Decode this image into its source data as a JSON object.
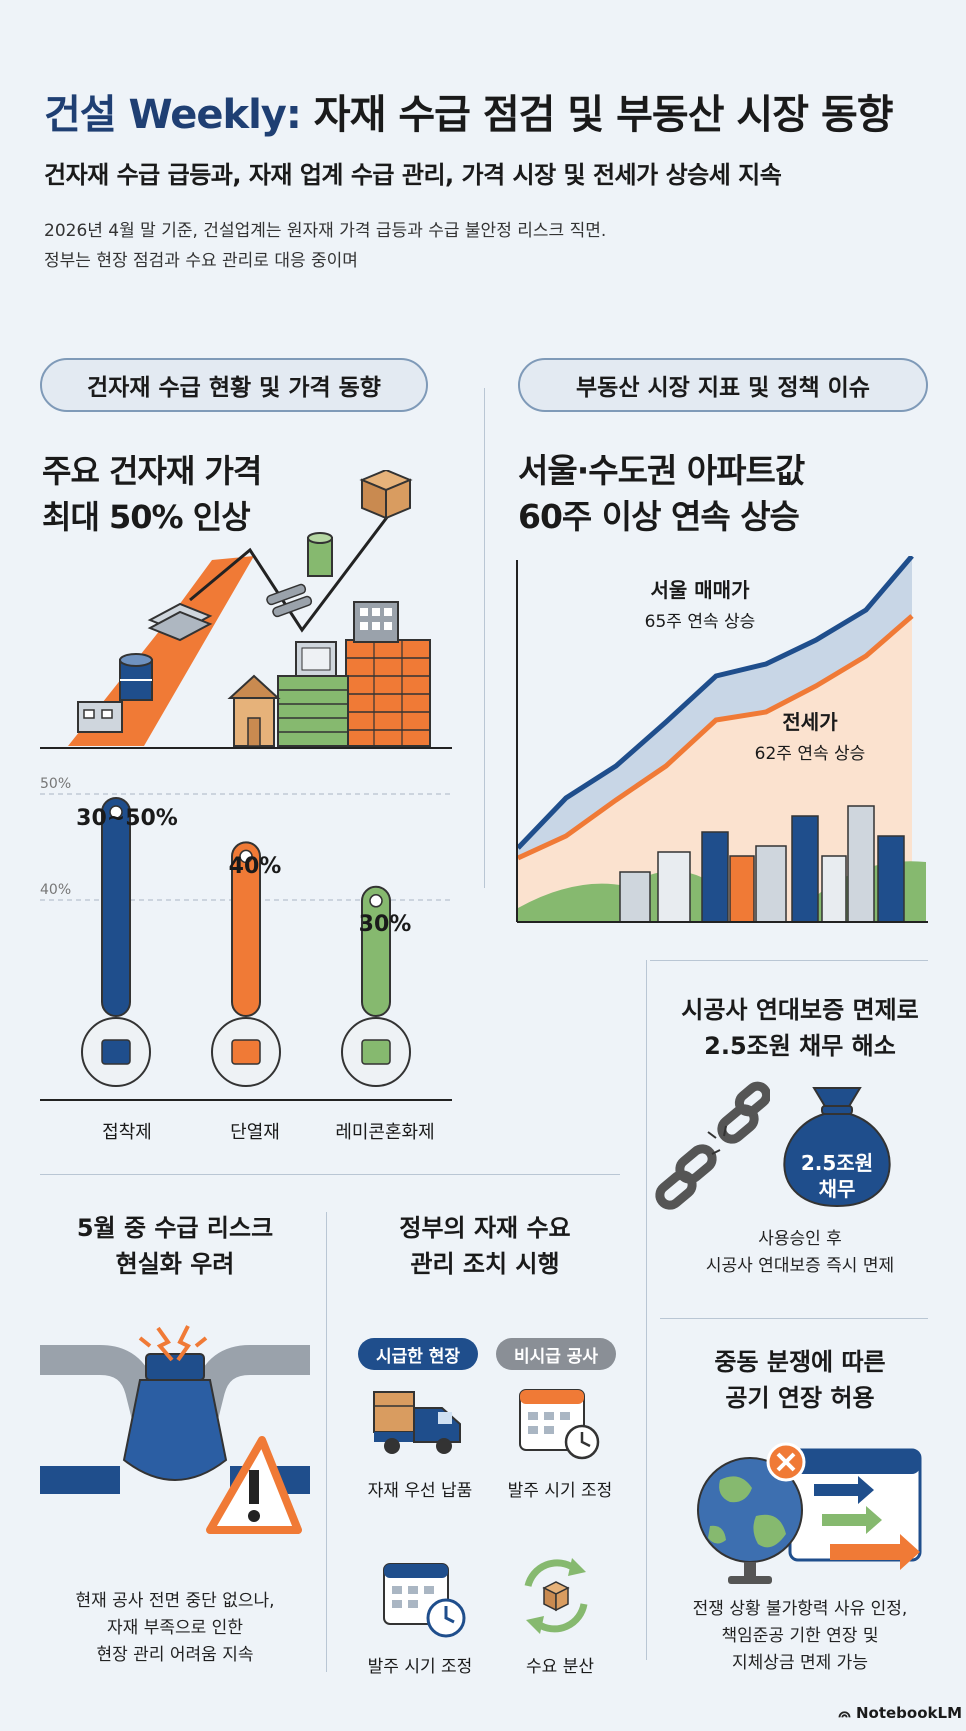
{
  "header": {
    "title_brand": "건설 Weekly:",
    "title_rest": " 자재 수급 점검 및 부동산 시장 동향",
    "subtitle": "건자재 수급 급등과, 자재 업계 수급 관리, 가격 시장 및 전세가 상승세 지속",
    "intro_line1": "2026년 4월 말 기준, 건설업계는 원자재 가격 급등과 수급 불안정 리스크 직면.",
    "intro_line2": "정부는 현장 점검과 수요 관리로 대응 중이며"
  },
  "materials": {
    "section_label": "건자재 수급 현황 및 가격 동향",
    "headline_line1": "주요 건자재 가격",
    "headline_line2": "최대 50% 인상",
    "grid_labels": [
      "50%",
      "40%"
    ],
    "bars": [
      {
        "label": "30~50%",
        "value_low": 30,
        "value_high": 50,
        "category": "접착제",
        "color": "#1f4e8c",
        "icon": "adhesive-bottle-icon"
      },
      {
        "label": "40%",
        "value": 40,
        "category": "단열재",
        "color": "#f07a36",
        "icon": "insulation-panel-icon"
      },
      {
        "label": "30%",
        "value": 30,
        "category": "레미콘혼화제",
        "color": "#86b96f",
        "icon": "admixture-bag-icon"
      }
    ]
  },
  "realestate": {
    "section_label": "부동산 시장 지표 및 정책 이슈",
    "headline_line1": "서울·수도권 아파트값",
    "headline_line2": "60주 이상 연속 상승",
    "series": [
      {
        "name": "서울 매매가",
        "note": "65주 연속 상승",
        "color": "#1f4e8c"
      },
      {
        "name": "전세가",
        "note": "62주 연속 상승",
        "color": "#f07a36"
      }
    ]
  },
  "guarantee": {
    "title_line1": "시공사 연대보증 면제로",
    "title_line2": "2.5조원 채무 해소",
    "bag_line1": "2.5조원",
    "bag_line2": "채무",
    "caption_line1": "사용승인 후",
    "caption_line2": "시공사 연대보증 즉시 면제"
  },
  "supply_risk": {
    "title_line1": "5월 중 수급 리스크",
    "title_line2": "현실화 우려",
    "caption_line1": "현재 공사 전면 중단 없으나,",
    "caption_line2": "자재 부족으로 인한",
    "caption_line3": "현장 관리 어려움 지속"
  },
  "gov": {
    "title_line1": "정부의 자재 수요",
    "title_line2": "관리 조치 시행",
    "tag_urgent": "시급한 현장",
    "tag_nonurgent": "비시급 공사",
    "item1": "자재 우선 납품",
    "item2": "발주 시기 조정",
    "item3": "발주 시기 조정",
    "item4": "수요 분산",
    "urgent_color": "#1f4e8c",
    "nonurgent_color": "#8a8f96"
  },
  "delay": {
    "title_line1": "중동 분쟁에 따른",
    "title_line2": "공기 연장 허용",
    "caption_line1": "전쟁 상황 불가항력 사유 인정,",
    "caption_line2": "책임준공 기한 연장 및",
    "caption_line3": "지체상금 면제 가능"
  },
  "footer": {
    "brand": "NotebookLM"
  }
}
